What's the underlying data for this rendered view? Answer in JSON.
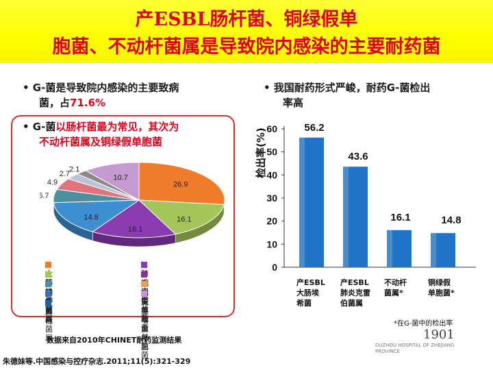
{
  "title": {
    "line1": "产ESBL肠杆菌、铜绿假单",
    "line2": "胞菌、不动杆菌属是导致院内感染的主要耐药菌"
  },
  "bullets": {
    "b1_line1": "• G-菌是导致院内感染的主要致病",
    "b1_line2_prefix": "菌，占",
    "b1_line2_value": "71.6%",
    "b2_line1": "•  我国耐药形式严峻，耐药G-菌检出",
    "b2_line2": "率高",
    "b3_prefix": "• G-菌",
    "b3_red1": "以肠杆菌最为常见，其次为",
    "b3_red2": "不动杆菌属及铜绿假单胞菌"
  },
  "pie": {
    "colors": [
      "#ee7c2a",
      "#a4c55a",
      "#8b3bb0",
      "#3d8fd1",
      "#4c8f9f",
      "#e1737b",
      "#b9c2d6",
      "#8a8a8a",
      "#c49ad0"
    ],
    "labels": [
      "26.9",
      "16.1",
      "16.1",
      "14.8",
      "5.7",
      "4.9",
      "2.7",
      "2.1",
      "10.7"
    ]
  },
  "legend": [
    {
      "label": "大肠埃希菌",
      "color": "#ee7c2a"
    },
    {
      "label": "肺炎克雷伯菌",
      "color": "#8b3bb0"
    },
    {
      "label": "不动杆菌属",
      "color": "#a4c55a"
    },
    {
      "label": "铜绿假单胞菌",
      "color": "#7b3a9a"
    },
    {
      "label": "肠杆菌属",
      "color": "#4c8f9f"
    },
    {
      "label": "嗜麦芽窄食单胞菌",
      "color": "#e8a25a"
    },
    {
      "label": "变形杆菌属",
      "color": "#3d6fb8"
    },
    {
      "label": "流感嗜血杆菌",
      "color": "#c49ad0"
    },
    {
      "label": "其他",
      "color": "#1f5fa8"
    }
  ],
  "source": {
    "data_note": "数据来自2010年CHINET耐药监测结果",
    "citation": "朱德妹等.中国感染与控疗杂志.2011;11(5):321-329"
  },
  "chart_data": {
    "type": "bar",
    "categories": [
      "产ESBL大肠埃希菌",
      "产ESBL肺炎克雷伯菌属",
      "不动杆菌属*",
      "铜绿假单胞菌*"
    ],
    "category_lines": [
      [
        "产ESBL",
        "大肠埃",
        "希菌"
      ],
      [
        "产ESBL",
        "肺炎克雷",
        "伯菌属"
      ],
      [
        "不动杆",
        "菌属*"
      ],
      [
        "铜绿假",
        "单胞菌*"
      ]
    ],
    "values": [
      56.2,
      43.6,
      16.1,
      14.8
    ],
    "value_labels": [
      "56.2",
      "43.6",
      "16.1",
      "14.8"
    ],
    "ylabel": "检出率(%)",
    "ylim": [
      0,
      60
    ],
    "yticks": [
      0,
      10,
      20,
      30,
      40,
      50,
      60
    ],
    "color": "#1f74c9",
    "grid": false
  },
  "footnote": "*在G-菌中的检出率",
  "logo": {
    "number": "1901",
    "text": "DUZHOU HOSPITAL OF ZHEJIANG PROVINCE"
  }
}
